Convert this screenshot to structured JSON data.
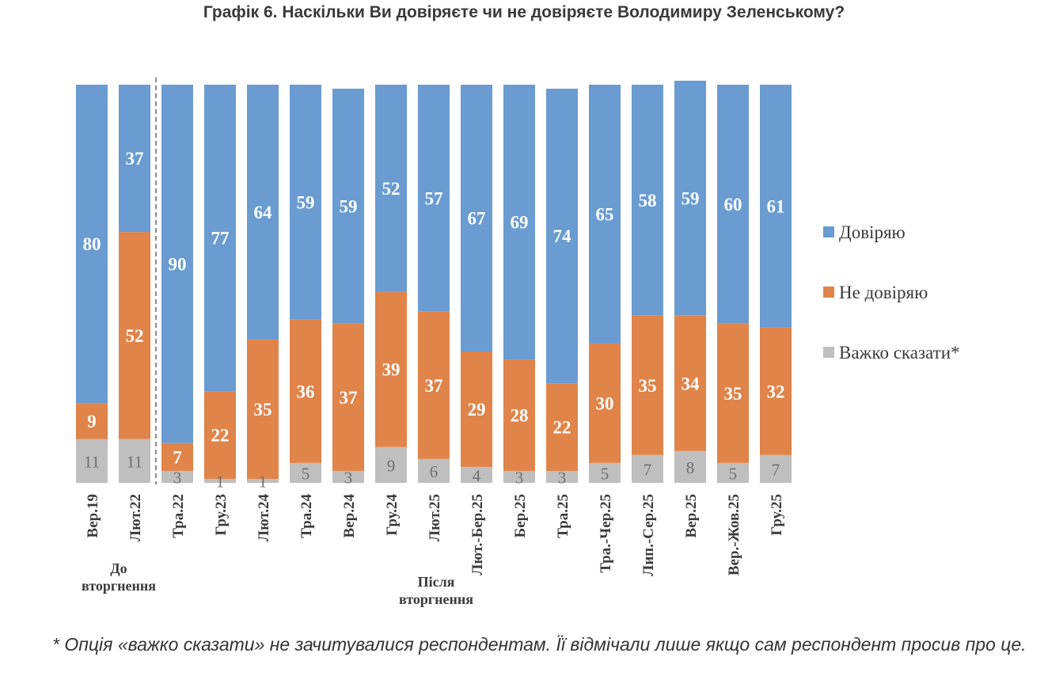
{
  "title": "Графік 6. Наскільки Ви довіряєте чи не довіряєте Володимиру Зеленському?",
  "footnote": "* Опція «важко сказати» не зачитувалися респондентам. Її відмічали лише якщо сам респондент просив про це.",
  "colors": {
    "trust": "#6a9bd1",
    "distrust": "#e0844a",
    "hard": "#bfbfbf",
    "divider": "#8c8c8c"
  },
  "chart_data": {
    "type": "bar",
    "stacked": true,
    "ylim": [
      0,
      100
    ],
    "grid": false,
    "legend_position": "right",
    "categories": [
      "Вер.19",
      "Лют.22",
      "Тра.22",
      "Гру.23",
      "Лют.24",
      "Тра.24",
      "Вер.24",
      "Гру.24",
      "Лют.25",
      "Лют.-Бер.25",
      "Бер.25",
      "Тра.25",
      "Тра.-Чер.25",
      "Лип.-Сер.25",
      "Вер.25",
      "Жов.25",
      "Гру.25"
    ],
    "category_labels": [
      "Вер.19",
      "Лют.22",
      "Тра.22",
      "Гру.23",
      "Лют.24",
      "Тра.24",
      "Вер.24",
      "Гру.24",
      "Лют.25",
      "Лют.-Бер.25",
      "Бер.25",
      "Тра.25",
      "Тра.-Чер.25",
      "Лип.-Сер.25",
      "Вер.25",
      "Вер.-Жов.25",
      "Гру.25"
    ],
    "series": [
      {
        "name": "Важко сказати*",
        "values": [
          11,
          11,
          3,
          1,
          1,
          5,
          3,
          9,
          6,
          4,
          3,
          3,
          5,
          7,
          8,
          5,
          7
        ]
      },
      {
        "name": "Не довіряю",
        "values": [
          9,
          52,
          7,
          22,
          35,
          36,
          37,
          39,
          37,
          29,
          28,
          22,
          30,
          35,
          34,
          35,
          32
        ]
      },
      {
        "name": "Довіряю",
        "values": [
          80,
          37,
          90,
          77,
          64,
          59,
          59,
          52,
          57,
          67,
          69,
          74,
          65,
          58,
          59,
          60,
          61
        ]
      }
    ],
    "legend_order": [
      "Довіряю",
      "Не довіряю",
      "Важко сказати*"
    ],
    "periods": [
      {
        "label_lines": [
          "До",
          "вторгнення"
        ]
      },
      {
        "label_lines": [
          "Після",
          "вторгнення"
        ]
      }
    ]
  }
}
